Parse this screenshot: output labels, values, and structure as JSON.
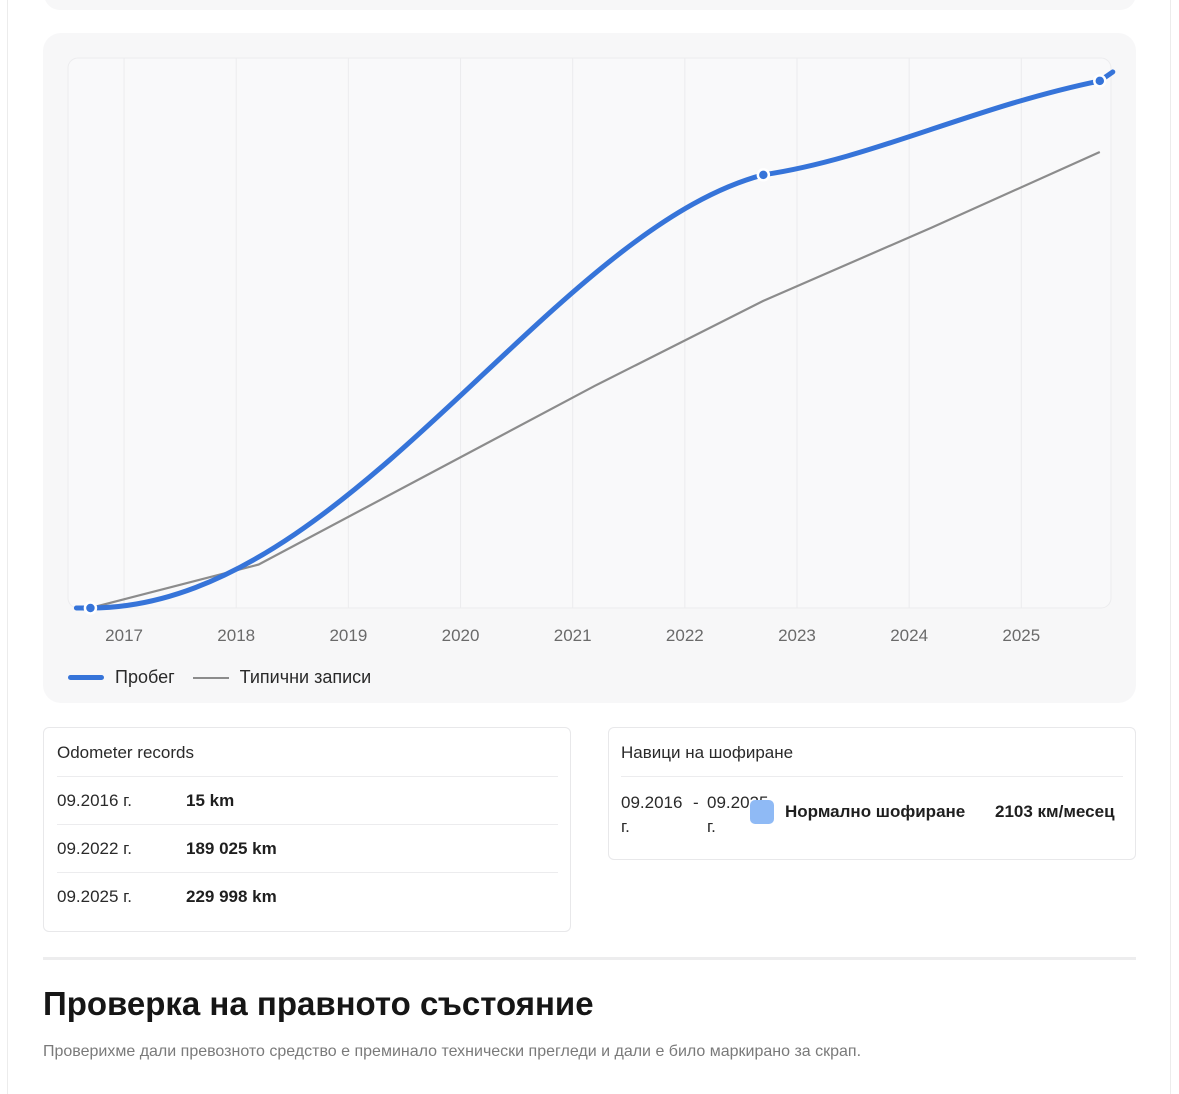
{
  "chart": {
    "legend": [
      {
        "key": "mileage",
        "label": "Пробег",
        "color": "#3674d9"
      },
      {
        "key": "typical",
        "label": "Типични записи",
        "color": "#8c8c8c"
      }
    ]
  },
  "chart_data": {
    "type": "line",
    "title": "",
    "xlabel": "",
    "ylabel": "",
    "x_ticks": [
      "2017",
      "2018",
      "2019",
      "2020",
      "2021",
      "2022",
      "2023",
      "2024",
      "2025"
    ],
    "xlim": [
      2016.5,
      2025.8
    ],
    "ylim": [
      0,
      240000
    ],
    "grid": "vertical",
    "legend_position": "bottom-left",
    "series": [
      {
        "name": "Пробег",
        "color": "#3674d9",
        "style": "smooth",
        "points": [
          {
            "x": 2016.7,
            "y": 15
          },
          {
            "x": 2022.7,
            "y": 189025
          },
          {
            "x": 2025.7,
            "y": 229998
          }
        ]
      },
      {
        "name": "Типични записи",
        "color": "#8c8c8c",
        "style": "line",
        "points": [
          {
            "x": 2016.7,
            "y": 15
          },
          {
            "x": 2018.2,
            "y": 19000
          },
          {
            "x": 2019.7,
            "y": 58000
          },
          {
            "x": 2021.2,
            "y": 97000
          },
          {
            "x": 2022.7,
            "y": 134000
          },
          {
            "x": 2024.2,
            "y": 166000
          },
          {
            "x": 2025.7,
            "y": 199000
          }
        ]
      }
    ]
  },
  "records": {
    "title": "Odometer records",
    "items": [
      {
        "date": "09.2016 г.",
        "value": "15 km"
      },
      {
        "date": "09.2022 г.",
        "value": "189 025 km"
      },
      {
        "date": "09.2025 г.",
        "value": "229 998 km"
      }
    ]
  },
  "habits": {
    "title": "Навици на шофиране",
    "period_from": "09.2016",
    "period_sep": "-",
    "period_to": "09.2025",
    "period_from_suffix": "г.",
    "period_to_suffix": "г.",
    "swatch_color": "#8fbaf5",
    "type": "Нормално шофиране",
    "rate": "2103 км/месец"
  },
  "legal": {
    "title": "Проверка на правното състояние",
    "subtitle": "Проверихме дали превозното средство е преминало технически прегледи и дали е било маркирано за скрап."
  }
}
